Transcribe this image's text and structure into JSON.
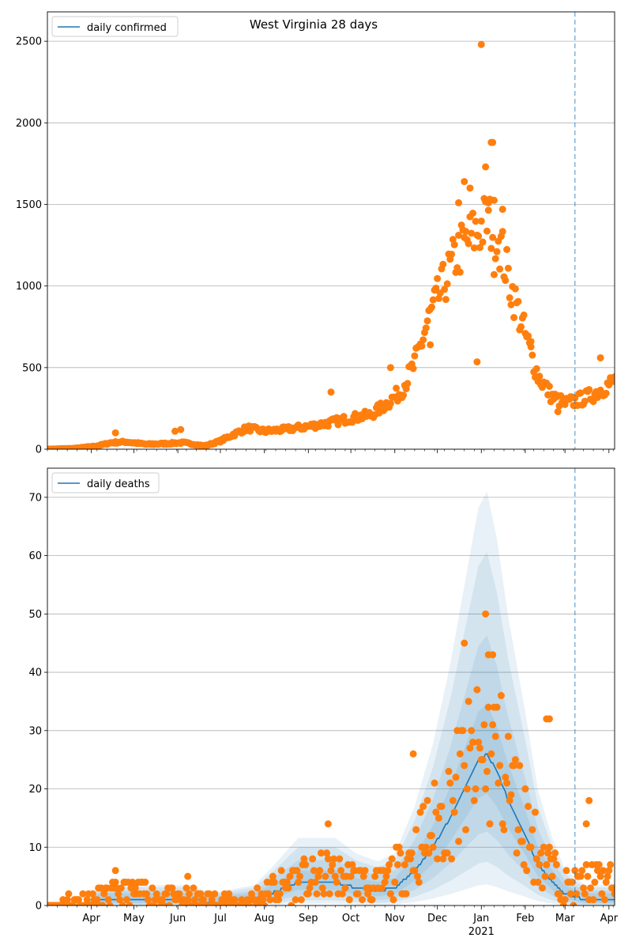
{
  "suptitle": "West Virginia 28 days",
  "colors": {
    "line": "#1f77b4",
    "points": "#ff7f0e",
    "band": "#1f77b4",
    "grid": "#b0b0b0",
    "vline": "#1f77b4"
  },
  "x_axis": {
    "months": [
      "Apr",
      "May",
      "Jun",
      "Jul",
      "Aug",
      "Sep",
      "Oct",
      "Nov",
      "Dec",
      "Jan",
      "Feb",
      "Mar",
      "Apr"
    ],
    "month_dates": [
      "2020-04-01",
      "2020-05-01",
      "2020-06-01",
      "2020-07-01",
      "2020-08-01",
      "2020-09-01",
      "2020-10-01",
      "2020-11-01",
      "2020-12-01",
      "2021-01-01",
      "2021-02-01",
      "2021-03-01",
      "2021-04-01"
    ],
    "year_label": "2021",
    "range": [
      "2020-03-01",
      "2021-04-05"
    ],
    "marker_date": "2021-03-08"
  },
  "chart_data": [
    {
      "type": "scatter",
      "legend": "daily confirmed",
      "legend_position": "top-left",
      "ylim": [
        0,
        2680
      ],
      "yticks": [
        0,
        500,
        1000,
        1500,
        2000,
        2500
      ],
      "grid": "horizontal",
      "line": [],
      "key_points": [
        [
          "2020-03-01",
          0
        ],
        [
          "2020-03-20",
          5
        ],
        [
          "2020-04-05",
          20
        ],
        [
          "2020-04-15",
          40
        ],
        [
          "2020-04-25",
          45
        ],
        [
          "2020-05-10",
          30
        ],
        [
          "2020-05-25",
          35
        ],
        [
          "2020-06-05",
          40
        ],
        [
          "2020-06-20",
          20
        ],
        [
          "2020-07-01",
          50
        ],
        [
          "2020-07-10",
          90
        ],
        [
          "2020-07-20",
          130
        ],
        [
          "2020-08-01",
          110
        ],
        [
          "2020-08-15",
          120
        ],
        [
          "2020-09-01",
          140
        ],
        [
          "2020-09-15",
          160
        ],
        [
          "2020-10-01",
          190
        ],
        [
          "2020-10-15",
          210
        ],
        [
          "2020-10-25",
          270
        ],
        [
          "2020-11-05",
          350
        ],
        [
          "2020-11-15",
          520
        ],
        [
          "2020-11-25",
          800
        ],
        [
          "2020-12-05",
          1000
        ],
        [
          "2020-12-15",
          1200
        ],
        [
          "2020-12-25",
          1300
        ],
        [
          "2021-01-05",
          1400
        ],
        [
          "2021-01-12",
          1350
        ],
        [
          "2021-01-20",
          1050
        ],
        [
          "2021-02-01",
          700
        ],
        [
          "2021-02-10",
          450
        ],
        [
          "2021-02-20",
          320
        ],
        [
          "2021-03-01",
          280
        ],
        [
          "2021-03-10",
          300
        ],
        [
          "2021-03-20",
          330
        ],
        [
          "2021-04-05",
          420
        ]
      ],
      "outliers": [
        [
          "2020-04-18",
          100
        ],
        [
          "2020-06-03",
          120
        ],
        [
          "2020-05-30",
          110
        ],
        [
          "2020-11-26",
          640
        ],
        [
          "2021-01-01",
          2480
        ],
        [
          "2021-01-08",
          1880
        ],
        [
          "2021-01-09",
          1880
        ],
        [
          "2021-01-04",
          1730
        ],
        [
          "2020-12-20",
          1640
        ],
        [
          "2020-12-16",
          1510
        ],
        [
          "2021-01-16",
          1470
        ],
        [
          "2020-12-24",
          1600
        ],
        [
          "2021-01-06",
          1510
        ],
        [
          "2021-01-10",
          1070
        ],
        [
          "2020-12-29",
          535
        ],
        [
          "2020-09-17",
          350
        ],
        [
          "2020-10-29",
          500
        ],
        [
          "2021-03-26",
          560
        ],
        [
          "2021-02-05",
          660
        ],
        [
          "2021-02-24",
          230
        ]
      ],
      "noise_amplitude": 0.14,
      "seed": 7
    },
    {
      "type": "line",
      "legend": "daily deaths",
      "legend_position": "top-left",
      "ylim": [
        0,
        75
      ],
      "yticks": [
        0,
        10,
        20,
        30,
        40,
        50,
        60,
        70
      ],
      "grid": "horizontal",
      "line_key_points": [
        [
          "2020-03-01",
          0
        ],
        [
          "2020-03-28",
          0
        ],
        [
          "2020-04-08",
          1
        ],
        [
          "2020-06-10",
          1
        ],
        [
          "2020-06-25",
          0.5
        ],
        [
          "2020-07-25",
          1
        ],
        [
          "2020-08-05",
          2
        ],
        [
          "2020-08-25",
          4
        ],
        [
          "2020-09-20",
          4
        ],
        [
          "2020-10-05",
          3
        ],
        [
          "2020-10-20",
          2.5
        ],
        [
          "2020-11-01",
          3
        ],
        [
          "2020-11-15",
          6
        ],
        [
          "2020-11-28",
          10
        ],
        [
          "2020-12-10",
          15
        ],
        [
          "2020-12-22",
          21
        ],
        [
          "2020-12-30",
          25
        ],
        [
          "2021-01-05",
          26
        ],
        [
          "2021-01-12",
          23
        ],
        [
          "2021-01-20",
          18
        ],
        [
          "2021-02-01",
          12
        ],
        [
          "2021-02-10",
          7
        ],
        [
          "2021-02-20",
          4
        ],
        [
          "2021-03-01",
          2
        ],
        [
          "2021-03-15",
          1
        ],
        [
          "2021-04-05",
          1
        ]
      ],
      "band_scales": [
        [
          0.75,
          1.3
        ],
        [
          0.5,
          1.75
        ],
        [
          0.3,
          2.3
        ],
        [
          0.15,
          2.7
        ]
      ],
      "points_key": [
        [
          "2020-03-01",
          0
        ],
        [
          "2020-04-05",
          1
        ],
        [
          "2020-04-20",
          2
        ],
        [
          "2020-05-10",
          2
        ],
        [
          "2020-06-01",
          1
        ],
        [
          "2020-06-25",
          0.5
        ],
        [
          "2020-07-20",
          0.5
        ],
        [
          "2020-08-10",
          3
        ],
        [
          "2020-08-25",
          4
        ],
        [
          "2020-09-15",
          5
        ],
        [
          "2020-10-05",
          4
        ],
        [
          "2020-10-20",
          3
        ],
        [
          "2020-11-05",
          6
        ],
        [
          "2020-11-20",
          11
        ],
        [
          "2020-12-05",
          15
        ],
        [
          "2020-12-20",
          22
        ],
        [
          "2021-01-01",
          25
        ],
        [
          "2021-01-10",
          27
        ],
        [
          "2021-01-25",
          18
        ],
        [
          "2021-02-05",
          11
        ],
        [
          "2021-02-20",
          6
        ],
        [
          "2021-03-01",
          3
        ],
        [
          "2021-03-20",
          4
        ],
        [
          "2021-04-05",
          4
        ]
      ],
      "outliers": [
        [
          "2021-01-04",
          50
        ],
        [
          "2020-12-20",
          45
        ],
        [
          "2021-01-06",
          43
        ],
        [
          "2021-01-09",
          43
        ],
        [
          "2020-09-15",
          14
        ],
        [
          "2020-11-14",
          26
        ],
        [
          "2021-03-18",
          18
        ],
        [
          "2021-03-16",
          14
        ],
        [
          "2020-04-18",
          6
        ],
        [
          "2020-06-08",
          5
        ],
        [
          "2021-02-18",
          32
        ],
        [
          "2021-02-16",
          32
        ]
      ],
      "noise_amplitude": 0.5,
      "seed": 11
    }
  ]
}
